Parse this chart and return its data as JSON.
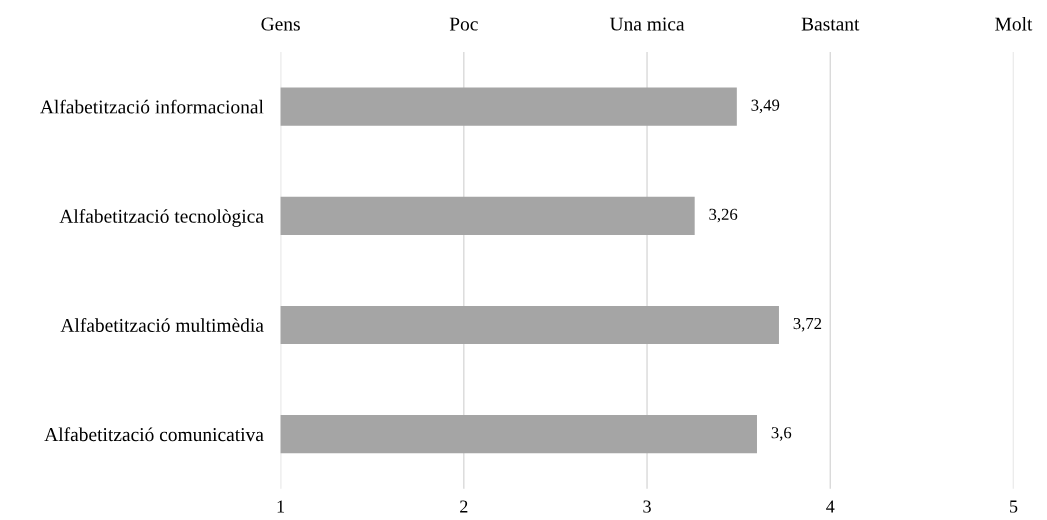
{
  "chart_data": {
    "type": "bar",
    "orientation": "horizontal",
    "categories": [
      "Alfabetització informacional",
      "Alfabetització tecnològica",
      "Alfabetització multimèdia",
      "Alfabetització comunicativa"
    ],
    "values": [
      3.49,
      3.26,
      3.72,
      3.6
    ],
    "value_labels": [
      "3,49",
      "3,26",
      "3,72",
      "3,6"
    ],
    "color": "#a5a5a5",
    "xlim": [
      1,
      5
    ],
    "xticks": [
      1,
      2,
      3,
      4,
      5
    ],
    "annotations": [
      "Gens",
      "Poc",
      "Una mica",
      "Bastant",
      "Molt"
    ],
    "grid": "x"
  }
}
